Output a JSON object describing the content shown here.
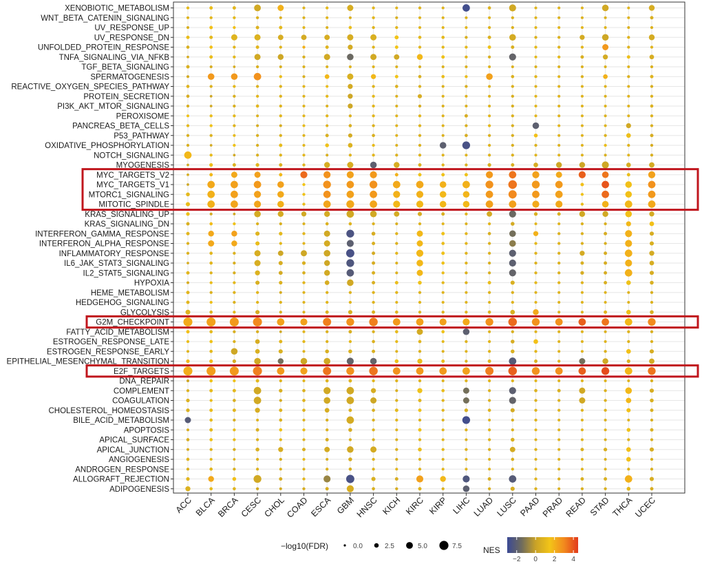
{
  "chart_data": {
    "type": "scatter",
    "xlabel": "",
    "ylabel": "",
    "categories": [
      "ACC",
      "BLCA",
      "BRCA",
      "CESC",
      "CHOL",
      "COAD",
      "ESCA",
      "GBM",
      "HNSC",
      "KICH",
      "KIRC",
      "KIRP",
      "LIHC",
      "LUAD",
      "LUSC",
      "PAAD",
      "PRAD",
      "READ",
      "STAD",
      "THCA",
      "UCEC"
    ],
    "pathways": [
      "XENOBIOTIC_METABOLISM",
      "WNT_BETA_CATENIN_SIGNALING",
      "UV_RESPONSE_UP",
      "UV_RESPONSE_DN",
      "UNFOLDED_PROTEIN_RESPONSE",
      "TNFA_SIGNALING_VIA_NFKB",
      "TGF_BETA_SIGNALING",
      "SPERMATOGENESIS",
      "REACTIVE_OXYGEN_SPECIES_PATHWAY",
      "PROTEIN_SECRETION",
      "PI3K_AKT_MTOR_SIGNALING",
      "PEROXISOME",
      "PANCREAS_BETA_CELLS",
      "P53_PATHWAY",
      "OXIDATIVE_PHOSPHORYLATION",
      "NOTCH_SIGNALING",
      "MYOGENESIS",
      "MYC_TARGETS_V2",
      "MYC_TARGETS_V1",
      "MTORC1_SIGNALING",
      "MITOTIC_SPINDLE",
      "KRAS_SIGNALING_UP",
      "KRAS_SIGNALING_DN",
      "INTERFERON_GAMMA_RESPONSE",
      "INTERFERON_ALPHA_RESPONSE",
      "INFLAMMATORY_RESPONSE",
      "IL6_JAK_STAT3_SIGNALING",
      "IL2_STAT5_SIGNALING",
      "HYPOXIA",
      "HEME_METABOLISM",
      "HEDGEHOG_SIGNALING",
      "GLYCOLYSIS",
      "G2M_CHECKPOINT",
      "FATTY_ACID_METABOLISM",
      "ESTROGEN_RESPONSE_LATE",
      "ESTROGEN_RESPONSE_EARLY",
      "EPITHELIAL_MESENCHYMAL_TRANSITION",
      "E2F_TARGETS",
      "DNA_REPAIR",
      "COMPLEMENT",
      "COAGULATION",
      "CHOLESTEROL_HOMEOSTASIS",
      "BILE_ACID_METABOLISM",
      "APOPTOSIS",
      "APICAL_SURFACE",
      "APICAL_JUNCTION",
      "ANGIOGENESIS",
      "ANDROGEN_RESPONSE",
      "ALLOGRAFT_REJECTION",
      "ADIPOGENESIS"
    ],
    "highlighted_pathways": [
      "MYC_TARGETS_V2",
      "MYC_TARGETS_V1",
      "MTORC1_SIGNALING",
      "MITOTIC_SPINDLE",
      "G2M_CHECKPOINT",
      "E2F_TARGETS"
    ],
    "highlight_color": "#c0161d",
    "size_legend": {
      "title": "−log10(FDR)",
      "values": [
        0.0,
        2.5,
        5.0,
        7.5
      ],
      "labels": [
        "0.0",
        "2.5",
        "5.0",
        "7.5"
      ]
    },
    "color_legend": {
      "title": "NES",
      "range": [
        -3,
        4.5
      ],
      "ticks": [
        -2,
        0,
        2,
        4
      ],
      "tick_labels": [
        "−2",
        "0",
        "2",
        "4"
      ],
      "colors": [
        "#3b4994",
        "#6e6b5e",
        "#c9a227",
        "#f2c418",
        "#f28a1e",
        "#e23a1b"
      ]
    },
    "grid": true,
    "points_by_category": [
      "1.0 0.4|0.8 0.3|0.6 0.3|1.2 0.6|0.6 0.5|0.5 0.2|0.6 0.6|0.4 0.3|0.8 0.5|0.5 0.5|0.6 0.4|1.4 0.3|1.0 0.4|0.6 0.4|0.6 0.4|1.8 2.6|0.3 0.2|0.5 0.2|0.2 0.2|1.0 0.8|1.2 1.0|1.3 0.7|0.6 0.6|0.9 0.6|0.7 0.4|0.7 0.4|0.5 0.2|0.9 0.6|0.5 0.3|0.9 0.6|0.9 0.6|0.8 1.3|2.2 3.4|1.6 0.6|1.2 0.4|0.8 0.3|1.8 0.7|2.1 3.4|0.2 0.3|0.7 0.4|0.7 0.7|0.6 0.7|-2.2 2.0|0.5 0.3|0.5 0.5|0.5 0.3|0.8 0.5|0.6 0.4|0.9 0.7|0.7 1.4",
      "1.2 0.6|0.9 0.4|1.6 0.6|1.0 0.6|1.6 0.5|1.2 0.6|0.5 0.3|2.6 2.2|0.7 0.4|0.2 0.2|0.3 0.2|1.2 0.4|1.4 0.4|0.7 0.4|0.4 0.2|1.1 0.4|1.3 0.7|1.8 0.6|2.2 2.6|2.0 2.6|2.0 2.6|0.4 0.3|1.7 0.5|2.2 1.8|2.2 2.0|0.9 0.5|0.9 0.5|0.8 0.4|1.2 0.4|0.7 0.4|1.3 0.4|0.8 0.5|2.4 3.4|1.0 0.5|1.4 0.5|1.0 0.5|1.7 0.7|2.5 3.4|1.4 0.5|1.1 0.6|1.2 0.4|1.2 0.6|1.1 0.5|1.0 0.6|1.4 0.5|0.8 0.4|1.0 0.3|0.9 0.5|2.2 1.8|1.1 0.5",
      "0.9 0.6|1.0 0.4|1.6 0.4|0.8 2.0|0.9 0.4|1.0 0.4|0.5 0.2|2.6 2.2|1.0 0.4|0.6 0.4|0.6 0.4|1.0 0.4|0.8 0.4|1.1 0.3|1.4 0.4|0.3 0.2|0.7 0.6|2.2 2.0|2.4 2.6|2.4 2.6|2.3 2.6|0.3 0.2|1.4 0.4|2.4 1.8|2.2 1.8|0.7 0.4|0.6 0.4|0.6 0.4|1.0 0.4|0.8 0.4|0.7 0.4|1.0 0.4|2.6 3.4|0.6 0.4|0.7 0.4|0.2 2.2|0.5 0.7|2.6 3.4|1.4 0.4|1.0 0.6|0.6 0.5|0.9 0.6|0.6 0.4|1.2 0.4|1.2 0.4|0.6 0.4|0.8 0.2|0.6 0.4|1.6 0.8|0.8 0.5",
      "0.3 2.3|0.7 0.4|0.7 0.6|0.7 2.0|0.9 0.6|0.3 2.0|0.6 0.4|2.8 2.6|0.7 0.4|0.9 0.4|0.9 0.5|0.7 0.3|0.5 0.3|0.6 0.4|0.6 0.4|0.6 0.4|0.9 0.7|2.4 2.0|2.6 2.6|2.4 2.4|2.3 2.4|0.4 2.2|0.7 0.4|0.8 1.0|1.2 1.0|0.5 2.0|0.5 2.0|0.7 1.4|0.6 1.0|0.9 0.4|0.9 0.4|0.5 1.0|3.0 3.4|0.6 0.4|0.5 1.2|0.6 1.2|0.3 2.2|3.2 3.4|1.0 0.6|0.3 2.6|0.3 2.6|0.5 1.4|0.8 0.3|0.6 0.6|0.7 0.4|0.6 0.8|0.7 0.4|0.7 0.4|0.3 2.8|0.3 0.4",
      "2.0 2.0|0.7 0.3|1.0 0.6|0.5 1.6|0.8 0.4|0.2 1.8|0.6 0.3|1.2 0.4|0.8 0.4|0.8 0.4|0.8 0.4|0.9 0.4|0.5 0.3|0.7 0.4|1.1 0.6|0.8 0.4|0.7 0.6|1.8 0.6|2.4 2.2|2.2 2.2|2.0 2.2|0.4 1.8|0.6 0.4|1.0 0.7|1.0 0.4|0.2 1.6|0.5 1.0|0.4 0.9|0.7 0.7|0.5 0.3|0.8 0.4|0.7 0.4|2.4 2.6|0.3 0.2|0.9 0.6|0.6 1.0|-1.4 1.8|2.6 2.6|0.8 0.4|0.6 0.7|0.5 0.4|0.8 0.6|0.7 0.5|1.4 0.5|1.0 0.4|0.5 1.4|0.6 0.4|0.8 0.3|0.5 0.6|0.4 0.3",
      "0.8 0.3|0.7 0.3|0.9 0.3|0.4 1.6|2.0 0.4|0.6 0.4|0.7 0.3|0.6 0.3|0.9 0.3|0.8 0.3|0.8 0.3|0.9 0.3|1.1 0.3|0.8 0.3|0.9 0.3|0.9 0.3|0.8 0.4|3.6 2.4|1.5 0.4|1.4 0.4|1.2 0.4|0.3 1.4|0.7 0.3|0.9 0.4|0.9 0.3|0.2 2.0|0.6 0.7|0.6 0.5|0.9 0.4|0.8 0.3|0.8 0.3|0.8 0.3|2.4 2.4|0.9 0.3|1.0 0.4|0.8 0.3|0.2 2.2|2.4 2.4|0.9 0.3|0.7 0.5|0.8 0.5|0.8 0.5|0.8 0.3|1.2 0.4|0.8 0.3|0.6 0.6|1.1 0.3|0.8 0.3|0.9 0.4|0.5 0.4",
      "1.0 0.4|0.9 0.3|0.7 0.3|0.5 1.6|0.8 0.6|0.3 2.0|0.7 0.3|1.8 1.2|1.2 0.3|1.0 0.4|0.7 0.3|0.9 0.4|0.8 0.3|0.6 0.6|1.4 0.8|0.6 0.3|0.5 1.8|2.8 2.4|2.8 2.8|2.8 2.6|2.3 2.6|0.4 1.8|0.7 0.5|0.3 2.0|0.4 2.0|0.2 2.2|0.2 1.8|0.3 1.8|0.5 1.2|0.8 0.4|0.9 0.4|0.8 0.6|3.2 3.0|0.7 0.4|0.8 0.4|0.6 0.8|0.3 2.2|3.4 3.0|0.8 0.5|0.3 2.4|0.3 2.2|0.5 1.2|0.6 0.4|0.7 0.4|0.5 0.6|0.4 1.6|0.6 0.3|0.7 0.4|-0.8 2.4|0.5 0.6",
      "0.5 2.0|0.7 0.3|1.2 0.5|0.5 2.0|0.4 1.4|-1.6 2.2|0.8 0.3|0.6 2.0|0.4 1.4|0.2 1.4|0.2 1.4|0.7 0.4|0.6 0.5|0.4 1.0|0.7 1.2|0.8 0.4|0.5 2.0|2.4 2.4|2.6 2.6|2.4 2.6|2.2 2.8|0.3 2.6|0.8 0.5|-2.5 2.8|-2.0 2.4|-2.6 3.0|-2.4 2.8|-2.2 2.6|0.3 2.2|0.8 0.4|0.9 0.4|0.6 1.0|2.8 2.8|0.6 0.6|1.0 0.4|0.6 0.8|-1.8 2.4|2.8 2.8|0.8 0.6|0.3 2.6|0.3 2.6|0.7 0.6|0.4 2.6|0.5 0.8|0.7 0.4|0.3 2.2|0.5 0.8|0.6 0.5|-2.6 3.0|0.5 2.4",
      "0.9 0.4|0.9 0.4|0.8 0.4|0.6 2.0|0.8 0.4|0.3 2.0|0.8 0.3|1.8 1.4|0.8 0.4|1.0 0.4|0.9 0.4|0.9 0.4|0.7 0.4|0.6 0.5|1.1 0.4|0.9 0.4|-2.0 2.2|2.6 2.4|2.8 2.8|2.6 2.6|2.3 2.6|0.3 2.2|0.7 0.4|0.5 0.8|0.6 0.6|0.4 0.6|0.5 0.6|0.6 0.6|0.6 0.6|0.8 0.4|0.8 0.4|0.7 0.6|3.2 3.2|0.7 0.4|0.7 0.5|0.6 0.6|-1.8 2.2|3.4 3.2|0.9 0.4|0.5 1.4|0.2 2.0|0.6 0.5|0.7 0.4|0.8 0.4|0.7 0.4|0.4 2.0|0.8 0.4|0.8 0.4|0.6 1.0|0.6 0.5",
      "0.8 0.3|0.6 0.3|0.9 0.4|1.5 0.9|1.5 0.6|0.3 1.6|0.7 0.3|1.5 0.6|0.7 0.5|0.7 0.3|0.7 0.3|0.8 0.3|0.8 0.3|0.8 0.3|0.7 0.3|0.7 0.4|0.5 1.8|2.0 0.6|2.2 2.6|2.0 2.4|1.8 2.4|0.4 1.6|0.6 0.3|0.8 0.4|0.7 0.4|0.9 0.4|0.7 0.3|0.7 0.3|1.2 0.6|0.9 0.4|0.9 0.3|0.9 0.5|2.6 2.6|1.1 0.5|1.1 0.4|0.8 0.3|1.4 0.8|2.8 2.6|0.8 0.4|0.6 0.3|0.7 0.4|1.0 0.6|0.9 0.4|0.8 0.3|0.7 0.3|0.7 0.4|0.6 0.3|0.9 0.3|0.5 0.6|0.5 0.4",
      "0.8 0.4|0.8 0.3|0.9 0.3|1.0 0.5|0.9 0.4|1.8 1.8|0.6 0.3|0.6 0.5|0.7 0.4|0.5 1.0|0.5 0.4|0.9 0.4|0.8 0.4|0.7 0.4|0.7 0.4|0.8 0.4|0.7 0.6|1.4 0.6|2.2 2.6|2.0 2.4|1.8 2.4|0.5 1.0|0.8 0.4|1.8 2.0|1.8 2.0|1.8 2.4|1.8 2.2|1.8 2.0|1.4 0.8|0.8 0.4|0.9 0.4|0.8 0.4|2.4 2.6|0.4 2.0|0.9 0.5|0.7 0.4|1.2 1.4|2.6 2.6|0.8 0.4|1.4 1.4|0.9 0.6|1.4 0.6|0.8 0.4|1.4 0.6|0.9 0.4|1.2 0.8|0.8 0.4|0.8 0.4|2.4 2.4|0.8 0.6",
      "0.8 0.3|0.8 0.3|0.9 0.3|1.0 0.5|1.0 0.4|1.4 0.6|0.7 0.3|1.2 0.5|0.7 0.3|0.8 0.3|0.7 0.3|0.8 0.3|0.8 0.3|0.7 0.3|-2.0 2.2|0.8 0.3|0.9 0.4|1.4 0.6|2.0 2.2|1.8 2.2|1.8 2.2|0.6 0.6|0.9 0.3|1.4 0.6|1.2 0.5|1.4 0.6|1.4 0.5|1.2 0.4|1.0 0.4|0.8 0.3|0.9 0.3|0.8 0.4|2.4 2.4|1.4 0.5|1.0 0.3|0.8 0.3|1.2 0.6|2.6 2.6|0.8 0.3|1.2 0.5|0.9 0.4|0.9 0.4|0.8 0.3|0.9 0.3|0.9 0.3|1.0 0.4|0.8 0.3|0.9 0.3|1.8 1.8|0.7 0.4",
      "-2.8 2.6|0.7 0.3|0.9 0.3|0.6 0.4|1.0 0.4|0.9 0.4|0.7 0.3|1.2 0.4|0.6 0.4|0.8 0.3|0.7 0.3|0.5 0.6|0.6 0.4|0.5 0.5|-2.6 2.8|0.8 0.3|0.7 0.4|1.4 0.6|2.0 2.6|1.9 2.2|1.8 2.2|0.8 0.4|0.7 0.3|0.9 0.4|0.9 0.4|0.8 0.4|0.8 0.4|0.7 0.4|0.8 0.4|0.8 0.3|0.8 0.3|0.9 0.4|2.2 2.4|-2.0 2.2|0.8 0.4|0.8 0.3|0.8 0.4|2.4 2.6|0.8 0.4|-1.4 2.0|-1.4 2.0|0.6 0.7|-2.8 2.8|0.7 0.4|0.7 0.3|0.8 0.4|0.8 0.3|0.8 0.3|-2.4 2.4|-2.0 2.2",
      "0.7 0.5|0.8 0.3|0.8 0.4|0.7 0.6|1.4 0.6|0.6 0.4|0.8 0.3|2.4 2.2|0.8 0.3|0.8 0.3|0.8 0.3|0.9 0.3|1.0 0.4|0.7 0.4|0.8 0.4|0.8 0.4|0.6 0.7|2.6 2.4|2.8 2.8|2.6 2.6|2.4 2.6|0.4 1.6|0.9 0.4|0.6 0.5|0.7 0.4|0.7 0.4|0.6 0.4|0.6 0.4|1.2 0.6|0.8 0.4|0.8 0.3|0.8 0.5|2.8 2.8|0.8 0.3|0.9 0.4|0.8 0.4|0.8 0.6|3.2 3.0|0.9 0.4|0.7 0.4|0.7 0.4|0.8 0.5|0.8 0.3|0.9 0.4|0.8 0.4|0.7 0.4|0.8 0.3|0.9 0.3|0.6 0.6|0.6 0.4",
      "0.3 2.4|0.7 0.4|0.7 0.4|0.4 2.2|0.6 0.6|-1.8 2.4|0.7 0.3|0.7 0.5|0.7 0.4|0.6 0.4|0.6 0.4|0.7 0.4|0.6 0.4|0.6 0.4|0.6 0.4|0.7 0.4|0.6 0.6|3.4 2.6|3.4 3.2|3.0 3.0|2.4 2.6|-1.6 2.4|0.4 0.8|-1.4 2.2|-1.0 2.2|-2.0 2.4|-2.0 2.4|-1.8 2.4|0.6 1.0|0.7 0.4|0.8 0.4|0.6 1.2|3.6 3.2|0.6 0.4|0.5 0.8|0.6 0.8|-2.2 2.6|3.8 3.2|0.8 0.4|-2.0 2.4|-1.8 2.4|0.4 1.0|0.6 0.4|0.7 0.4|0.6 0.8|0.4 1.6|0.6 0.5|0.8 0.4|-2.2 2.6|0.5 1.0",
      "0.8 0.3|0.8 0.3|0.9 0.3|0.7 0.4|1.0 0.4|1.0 0.3|0.7 0.3|0.9 0.4|0.8 0.3|0.9 0.3|0.9 0.3|0.9 0.3|-2.0 2.2|1.6 0.8|0.7 0.4|0.8 0.3|0.5 1.2|2.4 2.4|2.6 2.8|2.6 2.6|2.2 2.4|0.6 0.7|0.9 0.3|2.0 1.4|1.0 0.4|0.8 0.4|0.7 0.4|0.8 0.4|1.0 0.4|0.8 0.3|0.9 0.3|2.2 1.8|2.8 2.8|0.8 0.3|1.6 1.2|0.9 0.4|0.7 0.6|2.8 2.8|0.9 0.3|0.7 0.5|0.7 0.4|0.8 0.4|0.8 0.4|0.9 0.3|0.8 0.3|0.8 0.4|0.8 0.3|0.9 0.3|0.8 0.4|0.7 0.4",
      "0.8 0.3|0.7 0.3|0.9 0.3|0.7 0.4|0.8 0.4|1.0 0.4|0.7 0.3|0.9 0.3|0.8 0.3|0.8 0.3|0.8 0.3|0.8 0.3|0.9 0.3|0.8 0.3|0.7 0.3|0.8 0.3|0.2 1.8|2.2 2.0|2.6 2.6|2.4 2.6|2.2 2.4|0.6 0.6|0.8 0.3|0.7 0.4|0.8 0.4|0.7 0.4|0.7 0.4|0.7 0.4|0.9 0.4|0.8 0.3|0.8 0.3|0.8 0.3|2.8 2.6|0.8 0.3|0.8 0.3|0.8 0.3|0.8 0.4|2.8 2.6|0.8 0.3|0.6 0.6|0.7 0.4|0.8 0.4|0.8 0.3|0.8 0.3|0.8 0.3|0.8 0.3|0.8 0.3|0.8 0.3|0.7 0.4|0.7 0.3",
      "0.8 0.3|0.7 0.3|0.9 0.3|0.4 1.4|0.9 0.4|0.6 0.6|0.7 0.3|0.7 0.4|0.8 0.3|0.8 0.3|0.8 0.3|0.8 0.3|0.8 0.3|0.8 0.3|0.8 0.3|0.8 0.3|0.2 1.8|3.8 2.4|1.6 0.6|1.4 0.4|1.2 0.4|0.3 1.8|0.7 0.4|0.7 0.4|0.7 0.4|0.4 1.4|0.6 0.6|0.5 0.7|0.8 0.4|0.8 0.3|0.8 0.3|0.8 0.3|3.8 2.6|0.8 0.3|0.8 0.3|0.8 0.3|-1.4 2.0|3.8 2.6|0.8 0.3|0.3 2.0|0.3 2.0|0.8 0.4|0.8 0.3|0.8 0.3|0.8 0.3|0.6 0.6|0.8 0.3|0.8 0.3|0.6 0.6|0.6 0.4",
      "0.3 2.2|0.7 0.3|0.8 0.3|0.2 2.2|2.6 2.0|0.4 1.4|0.7 0.3|2.0 1.2|0.8 0.3|0.7 0.3|0.8 0.3|0.7 0.3|0.8 0.3|0.7 0.4|1.2 0.4|0.6 0.3|0.2 2.4|3.4 2.2|4.0 2.6|3.6 2.6|2.0 2.2|0.3 1.8|0.6 0.4|0.5 0.6|0.6 0.4|0.5 0.6|0.5 0.6|0.5 0.6|0.6 0.6|0.8 0.3|0.8 0.3|0.9 0.6|3.4 2.6|0.7 0.3|0.8 0.3|0.7 0.4|0.3 1.8|4.2 2.8|0.8 0.3|0.7 0.4|0.7 0.4|0.8 0.4|0.7 0.3|0.8 0.3|0.7 0.3|0.6 0.7|0.7 0.3|0.8 0.3|0.6 0.6|0.6 0.4",
      "0.8 0.3|0.8 0.3|0.7 0.3|0.8 0.4|0.8 0.4|1.3 0.6|0.8 0.3|0.7 0.4|0.8 0.3|0.8 0.3|0.8 0.3|0.8 0.3|0.3 1.4|1.3 1.2|0.8 0.4|0.8 0.3|0.5 1.2|1.2 0.6|1.6 2.2|1.6 2.2|1.8 2.6|1.6 2.2|1.8 1.4|2.0 2.4|2.0 2.4|2.0 2.6|2.0 2.4|2.0 2.6|1.4 1.2|0.8 0.3|0.8 0.3|1.4 1.2|1.8 2.6|0.8 0.4|0.8 0.4|1.6 1.2|0.7 0.7|1.8 2.6|0.8 0.3|1.8 2.2|1.8 1.6|1.6 1.0|0.8 0.3|1.4 0.8|0.8 0.4|1.6 1.2|1.6 1.2|0.8 0.4|2.0 2.6|1.0 0.8",
      "0.5 1.8|0.6 0.6|0.7 0.4|0.4 1.8|0.8 0.4|0.5 1.2|0.7 0.4|0.8 0.6|0.6 0.4|0.7 0.4|0.7 0.5|0.7 0.4|0.6 0.4|0.5 0.6|0.5 0.4|0.6 0.4|0.4 1.6|2.4 2.4|2.8 2.6|2.6 2.6|2.2 2.6|0.4 1.4|1.6 1.2|0.5 1.0|0.6 1.0|0.4 1.4|0.5 1.2|0.5 1.0|0.6 0.8|0.6 0.4|0.7 0.4|0.6 0.8|3.0 2.8|0.6 0.4|0.7 0.4|0.5 1.0|0.4 1.6|3.4 2.8|0.6 0.4|0.5 1.0|0.6 0.8|0.6 0.6|0.6 0.4|0.6 0.6|0.6 0.4|0.5 1.0|0.6 0.4|0.6 0.4|0.5 1.0|0.5 0.6"
    ]
  }
}
